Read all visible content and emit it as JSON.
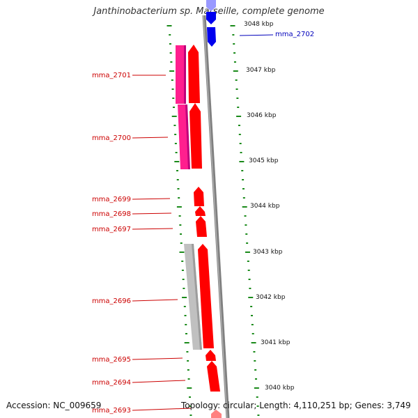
{
  "title": "Janthinobacterium sp. Marseille, complete genome",
  "footer": {
    "accession": "Accession: NC_009659",
    "summary": "Topology: circular; Length: 4,110,251 bp; Genes: 3,749"
  },
  "colors": {
    "forward_cds": "#ff0000",
    "reverse_cds_dark": "#0000ee",
    "reverse_cds_light": "#9999ff",
    "magenta_cds": "#ff1f8e",
    "grey_cds": "#c0c0c0",
    "backbone": "#808080",
    "tick": "#1a8a1a",
    "label_red": "#cc0000",
    "label_blue": "#0000bb"
  },
  "genes": [
    {
      "name": "mma_2702",
      "color": "blue"
    },
    {
      "name": "mma_2701",
      "color": "red"
    },
    {
      "name": "mma_2700",
      "color": "red"
    },
    {
      "name": "mma_2699",
      "color": "red"
    },
    {
      "name": "mma_2698",
      "color": "red"
    },
    {
      "name": "mma_2697",
      "color": "red"
    },
    {
      "name": "mma_2696",
      "color": "red"
    },
    {
      "name": "mma_2695",
      "color": "red"
    },
    {
      "name": "mma_2694",
      "color": "red"
    },
    {
      "name": "mma_2693",
      "color": "red"
    }
  ],
  "kbp_ticks": [
    "3048 kbp",
    "3047 kbp",
    "3046 kbp",
    "3045 kbp",
    "3044 kbp",
    "3043 kbp",
    "3042 kbp",
    "3041 kbp",
    "3040 kbp"
  ]
}
